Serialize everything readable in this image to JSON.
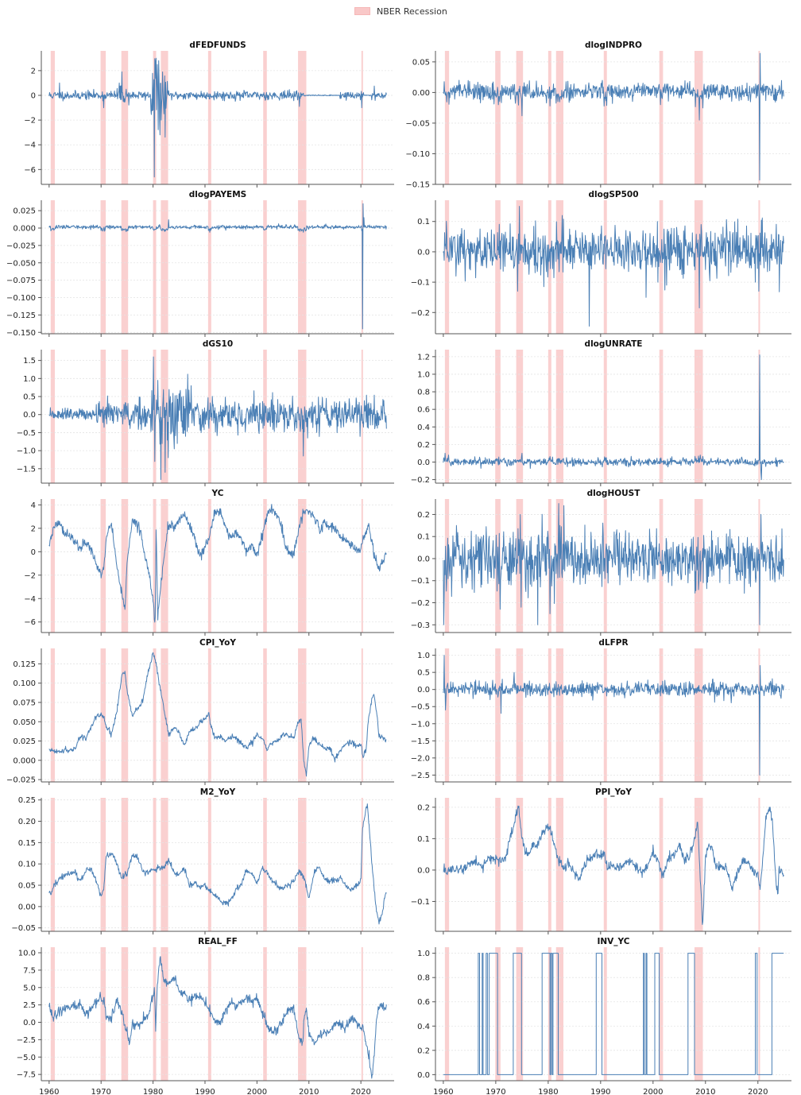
{
  "legend": {
    "label": "NBER Recession"
  },
  "colors": {
    "series": "#4a7fb5",
    "recession": "#f9c4c4",
    "grid": "#e4e4e4",
    "axis": "#555555",
    "text": "#222222"
  },
  "chart_data": [
    {
      "type": "line",
      "title": "dFEDFUNDS",
      "ylim": [
        -7.2,
        3.6
      ],
      "yticks": [
        2,
        0,
        -2,
        -4,
        -6
      ],
      "ytick_labels": [
        "2",
        "0",
        "−2",
        "−4",
        "−6"
      ],
      "profile": "fedfunds",
      "grid": true
    },
    {
      "type": "line",
      "title": "dlogINDPRO",
      "ylim": [
        -0.15,
        0.068
      ],
      "yticks": [
        0.05,
        0.0,
        -0.05,
        -0.1,
        -0.15
      ],
      "ytick_labels": [
        "0.05",
        "0.00",
        "−0.05",
        "−0.10",
        "−0.15"
      ],
      "profile": "indpro",
      "grid": true
    },
    {
      "type": "line",
      "title": "dlogPAYEMS",
      "ylim": [
        -0.152,
        0.04
      ],
      "yticks": [
        0.025,
        0.0,
        -0.025,
        -0.05,
        -0.075,
        -0.1,
        -0.125,
        -0.15
      ],
      "ytick_labels": [
        "0.025",
        "0.000",
        "−0.025",
        "−0.050",
        "−0.075",
        "−0.100",
        "−0.125",
        "−0.150"
      ],
      "profile": "payems",
      "grid": true
    },
    {
      "type": "line",
      "title": "dlogSP500",
      "ylim": [
        -0.27,
        0.17
      ],
      "yticks": [
        0.1,
        0.0,
        -0.1,
        -0.2
      ],
      "ytick_labels": [
        "0.1",
        "0.0",
        "−0.1",
        "−0.2"
      ],
      "profile": "sp500",
      "grid": true
    },
    {
      "type": "line",
      "title": "dGS10",
      "ylim": [
        -1.9,
        1.8
      ],
      "yticks": [
        1.5,
        1.0,
        0.5,
        0.0,
        -0.5,
        -1.0,
        -1.5
      ],
      "ytick_labels": [
        "1.5",
        "1.0",
        "0.5",
        "0.0",
        "−0.5",
        "−1.0",
        "−1.5"
      ],
      "profile": "gs10",
      "grid": true
    },
    {
      "type": "line",
      "title": "dlogUNRATE",
      "ylim": [
        -0.24,
        1.28
      ],
      "yticks": [
        1.2,
        1.0,
        0.8,
        0.6,
        0.4,
        0.2,
        0.0,
        -0.2
      ],
      "ytick_labels": [
        "1.2",
        "1.0",
        "0.8",
        "0.6",
        "0.4",
        "0.2",
        "0.0",
        "−0.2"
      ],
      "profile": "unrate",
      "grid": true
    },
    {
      "type": "line",
      "title": "YC",
      "ylim": [
        -6.9,
        4.5
      ],
      "yticks": [
        4,
        2,
        0,
        -2,
        -4,
        -6
      ],
      "ytick_labels": [
        "4",
        "2",
        "0",
        "−2",
        "−4",
        "−6"
      ],
      "profile": "yc",
      "grid": true
    },
    {
      "type": "line",
      "title": "dlogHOUST",
      "ylim": [
        -0.335,
        0.27
      ],
      "yticks": [
        0.2,
        0.1,
        0.0,
        -0.1,
        -0.2,
        -0.3
      ],
      "ytick_labels": [
        "0.2",
        "0.1",
        "0.0",
        "−0.1",
        "−0.2",
        "−0.3"
      ],
      "profile": "houst",
      "grid": true
    },
    {
      "type": "line",
      "title": "CPI_YoY",
      "ylim": [
        -0.028,
        0.145
      ],
      "yticks": [
        0.125,
        0.1,
        0.075,
        0.05,
        0.025,
        0.0,
        -0.025
      ],
      "ytick_labels": [
        "0.125",
        "0.100",
        "0.075",
        "0.050",
        "0.025",
        "0.000",
        "−0.025"
      ],
      "profile": "cpi",
      "grid": true
    },
    {
      "type": "line",
      "title": "dLFPR",
      "ylim": [
        -2.7,
        1.2
      ],
      "yticks": [
        1.0,
        0.5,
        0.0,
        -0.5,
        -1.0,
        -1.5,
        -2.0,
        -2.5
      ],
      "ytick_labels": [
        "1.0",
        "0.5",
        "0.0",
        "−0.5",
        "−1.0",
        "−1.5",
        "−2.0",
        "−2.5"
      ],
      "profile": "lfpr",
      "grid": true
    },
    {
      "type": "line",
      "title": "M2_YoY",
      "ylim": [
        -0.058,
        0.255
      ],
      "yticks": [
        0.25,
        0.2,
        0.15,
        0.1,
        0.05,
        0.0,
        -0.05
      ],
      "ytick_labels": [
        "0.25",
        "0.20",
        "0.15",
        "0.10",
        "0.05",
        "0.00",
        "−0.05"
      ],
      "profile": "m2",
      "grid": true
    },
    {
      "type": "line",
      "title": "PPI_YoY",
      "ylim": [
        -0.195,
        0.23
      ],
      "yticks": [
        0.2,
        0.1,
        0.0,
        -0.1
      ],
      "ytick_labels": [
        "0.2",
        "0.1",
        "0.0",
        "−0.1"
      ],
      "profile": "ppi",
      "grid": true
    },
    {
      "type": "line",
      "title": "REAL_FF",
      "ylim": [
        -8.4,
        10.8
      ],
      "yticks": [
        10.0,
        7.5,
        5.0,
        2.5,
        0.0,
        -2.5,
        -5.0,
        -7.5
      ],
      "ytick_labels": [
        "10.0",
        "7.5",
        "5.0",
        "2.5",
        "0.0",
        "−2.5",
        "−5.0",
        "−7.5"
      ],
      "profile": "realff",
      "grid": true
    },
    {
      "type": "line",
      "title": "INV_YC",
      "ylim": [
        -0.05,
        1.05
      ],
      "yticks": [
        1.0,
        0.8,
        0.6,
        0.4,
        0.2,
        0.0
      ],
      "ytick_labels": [
        "1.0",
        "0.8",
        "0.6",
        "0.4",
        "0.2",
        "0.0"
      ],
      "profile": "invyc",
      "grid": true
    }
  ],
  "x_axis": {
    "range": [
      1958.5,
      2026.4
    ],
    "ticks": [
      1960,
      1970,
      1980,
      1990,
      2000,
      2010,
      2020
    ],
    "tick_labels": [
      "1960",
      "1970",
      "1980",
      "1990",
      "2000",
      "2010",
      "2020"
    ]
  },
  "recessions": [
    [
      1960.3,
      1961.1
    ],
    [
      1969.9,
      1970.9
    ],
    [
      1973.9,
      1975.2
    ],
    [
      1980.0,
      1980.6
    ],
    [
      1981.5,
      1982.9
    ],
    [
      1990.6,
      1991.2
    ],
    [
      2001.2,
      2001.9
    ],
    [
      2007.9,
      2009.5
    ],
    [
      2020.1,
      2020.4
    ]
  ],
  "inv_yc_periods": [
    [
      1966.6,
      1966.9
    ],
    [
      1967.4,
      1967.5
    ],
    [
      1968.1,
      1968.4
    ],
    [
      1968.7,
      1970.3
    ],
    [
      1973.3,
      1974.9
    ],
    [
      1978.8,
      1980.3
    ],
    [
      1980.5,
      1980.7
    ],
    [
      1980.9,
      1981.9
    ],
    [
      1989.1,
      1990.2
    ],
    [
      1998.1,
      1998.3
    ],
    [
      1998.6,
      1998.8
    ],
    [
      2000.3,
      2001.1
    ],
    [
      2006.6,
      2007.9
    ],
    [
      2019.5,
      2019.8
    ],
    [
      2022.6,
      2025.0
    ]
  ]
}
